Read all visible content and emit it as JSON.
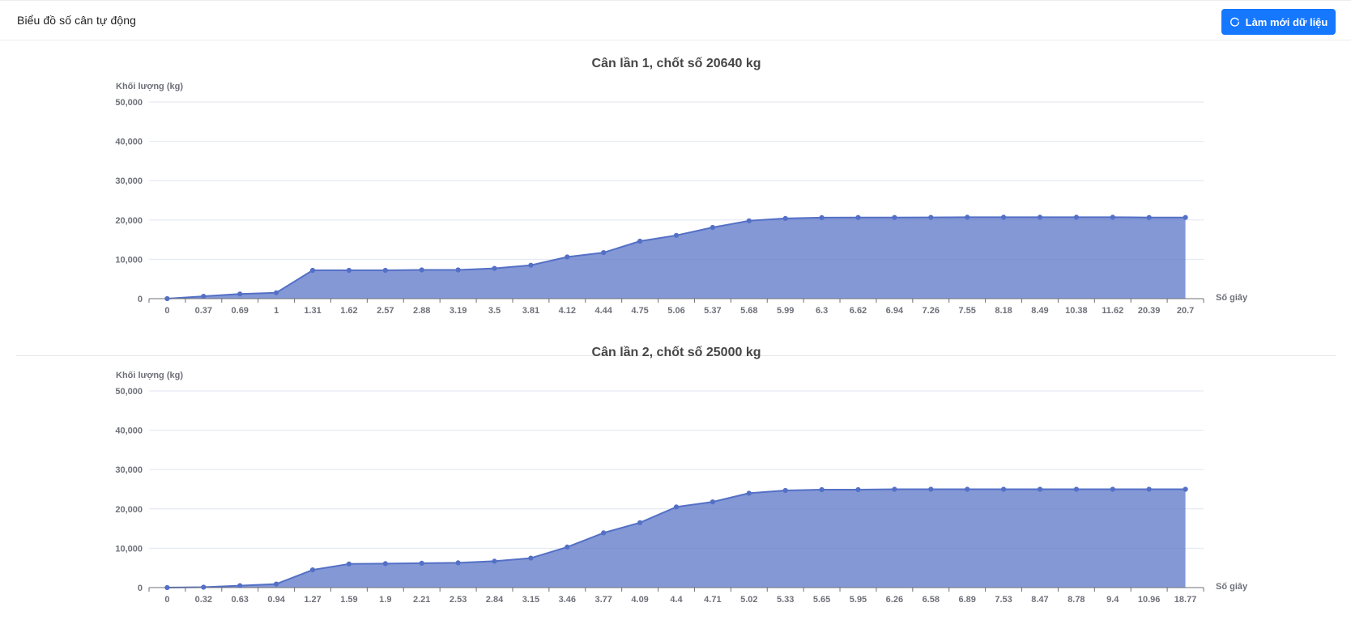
{
  "header": {
    "title": "Biểu đồ số cân tự động",
    "refresh_label": "Làm mới dữ liệu",
    "refresh_icon": "reload-icon",
    "accent_color": "#1677ff"
  },
  "chart_data": [
    {
      "type": "area",
      "title": "Cân lần 1, chốt số 20640 kg",
      "xlabel": "Số giây",
      "ylabel": "Khối lượng (kg)",
      "ylim": [
        0,
        50000
      ],
      "y_ticks": [
        "0",
        "10,000",
        "20,000",
        "30,000",
        "40,000",
        "50,000"
      ],
      "grid": true,
      "color": "#5470c6",
      "categories": [
        "0",
        "0.37",
        "0.69",
        "1",
        "1.31",
        "1.62",
        "2.57",
        "2.88",
        "3.19",
        "3.5",
        "3.81",
        "4.12",
        "4.44",
        "4.75",
        "5.06",
        "5.37",
        "5.68",
        "5.99",
        "6.3",
        "6.62",
        "6.94",
        "7.26",
        "7.55",
        "8.18",
        "8.49",
        "10.38",
        "11.62",
        "20.39",
        "20.7"
      ],
      "values": [
        0,
        600,
        1200,
        1500,
        7200,
        7200,
        7200,
        7300,
        7300,
        7700,
        8500,
        10600,
        11700,
        14600,
        16100,
        18100,
        19800,
        20400,
        20600,
        20640,
        20640,
        20660,
        20700,
        20700,
        20700,
        20700,
        20700,
        20640,
        20640
      ]
    },
    {
      "type": "area",
      "title": "Cân lần 2, chốt số 25000 kg",
      "xlabel": "Số giây",
      "ylabel": "Khối lượng (kg)",
      "ylim": [
        0,
        50000
      ],
      "y_ticks": [
        "0",
        "10,000",
        "20,000",
        "30,000",
        "40,000",
        "50,000"
      ],
      "grid": true,
      "color": "#5470c6",
      "categories": [
        "0",
        "0.32",
        "0.63",
        "0.94",
        "1.27",
        "1.59",
        "1.9",
        "2.21",
        "2.53",
        "2.84",
        "3.15",
        "3.46",
        "3.77",
        "4.09",
        "4.4",
        "4.71",
        "5.02",
        "5.33",
        "5.65",
        "5.95",
        "6.26",
        "6.58",
        "6.89",
        "7.53",
        "8.47",
        "8.78",
        "9.4",
        "10.96",
        "18.77"
      ],
      "values": [
        0,
        100,
        500,
        900,
        4500,
        6000,
        6100,
        6200,
        6300,
        6700,
        7500,
        10300,
        13900,
        16500,
        20500,
        21800,
        24000,
        24700,
        24900,
        24900,
        25000,
        25000,
        25000,
        25000,
        25000,
        25000,
        25000,
        25000,
        25000
      ]
    }
  ]
}
